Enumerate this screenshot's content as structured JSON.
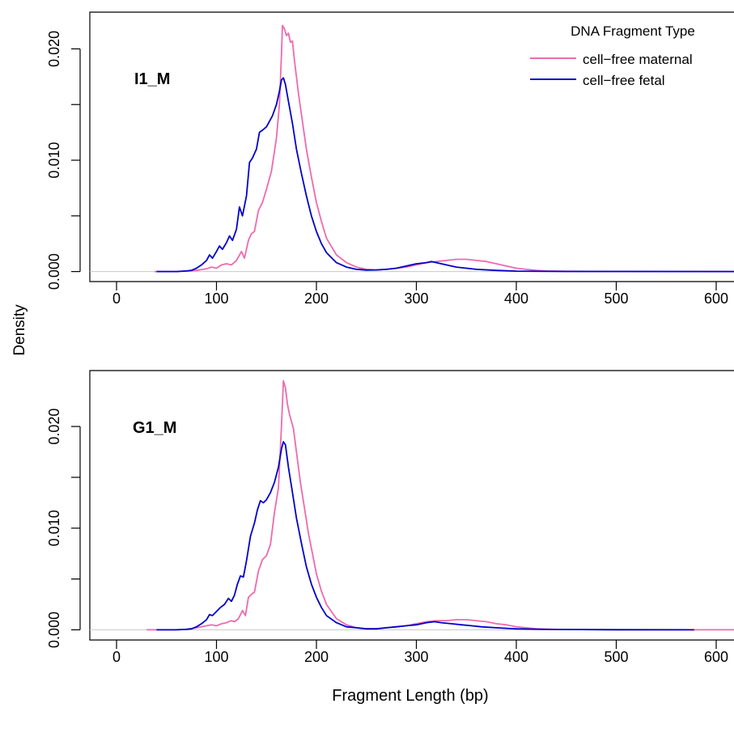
{
  "figure": {
    "ylabel": "Density",
    "xlabel": "Fragment Length (bp)"
  },
  "legend": {
    "title": "DNA Fragment Type",
    "entries": [
      {
        "label": "cell−free maternal",
        "color": "#EE6AAE"
      },
      {
        "label": "cell−free fetal",
        "color": "#0000CC"
      }
    ]
  },
  "chart_data": [
    {
      "type": "line",
      "panel_label": "I1_M",
      "xlim": [
        -27,
        620
      ],
      "ylim": [
        -0.0009,
        0.0233
      ],
      "xticks": [
        0,
        100,
        200,
        300,
        400,
        500,
        600
      ],
      "xtick_labels": [
        "0",
        "100",
        "200",
        "300",
        "400",
        "500",
        "600"
      ],
      "yticks": [
        0,
        0.005,
        0.01,
        0.015,
        0.02
      ],
      "ytick_labels": [
        "0.000",
        "",
        "0.010",
        "",
        "0.020"
      ],
      "baseline": 0,
      "series": [
        {
          "name": "cell−free maternal",
          "color": "#EE6AAE",
          "points": [
            [
              38,
              0
            ],
            [
              50,
              0
            ],
            [
              60,
              0
            ],
            [
              70,
              5e-05
            ],
            [
              80,
              0.0001
            ],
            [
              90,
              0.00025
            ],
            [
              95,
              0.0004
            ],
            [
              100,
              0.0003
            ],
            [
              105,
              0.0006
            ],
            [
              110,
              0.0007
            ],
            [
              115,
              0.0006
            ],
            [
              120,
              0.001
            ],
            [
              125,
              0.0018
            ],
            [
              128,
              0.0012
            ],
            [
              132,
              0.0028
            ],
            [
              135,
              0.0034
            ],
            [
              138,
              0.0036
            ],
            [
              142,
              0.0055
            ],
            [
              146,
              0.0062
            ],
            [
              150,
              0.0074
            ],
            [
              155,
              0.009
            ],
            [
              160,
              0.012
            ],
            [
              163,
              0.015
            ],
            [
              165,
              0.0195
            ],
            [
              166,
              0.0221
            ],
            [
              168,
              0.0218
            ],
            [
              170,
              0.0212
            ],
            [
              172,
              0.0214
            ],
            [
              174,
              0.0206
            ],
            [
              176,
              0.0207
            ],
            [
              178,
              0.019
            ],
            [
              182,
              0.016
            ],
            [
              186,
              0.0135
            ],
            [
              190,
              0.011
            ],
            [
              195,
              0.0085
            ],
            [
              200,
              0.0062
            ],
            [
              205,
              0.0045
            ],
            [
              210,
              0.003
            ],
            [
              220,
              0.0015
            ],
            [
              230,
              0.0008
            ],
            [
              240,
              0.0004
            ],
            [
              250,
              0.0002
            ],
            [
              260,
              0.00015
            ],
            [
              270,
              0.0002
            ],
            [
              280,
              0.0003
            ],
            [
              290,
              0.0004
            ],
            [
              300,
              0.0006
            ],
            [
              310,
              0.0008
            ],
            [
              320,
              0.0009
            ],
            [
              330,
              0.001
            ],
            [
              340,
              0.0011
            ],
            [
              350,
              0.0011
            ],
            [
              360,
              0.001
            ],
            [
              370,
              0.0009
            ],
            [
              380,
              0.0007
            ],
            [
              390,
              0.0005
            ],
            [
              400,
              0.0003
            ],
            [
              410,
              0.0002
            ],
            [
              420,
              0.0001
            ],
            [
              430,
              5e-05
            ],
            [
              450,
              2e-05
            ],
            [
              500,
              1e-05
            ],
            [
              620,
              0
            ]
          ]
        },
        {
          "name": "cell−free fetal",
          "color": "#0000CC",
          "points": [
            [
              40,
              0
            ],
            [
              60,
              0
            ],
            [
              70,
              5e-05
            ],
            [
              75,
              0.0001
            ],
            [
              80,
              0.0003
            ],
            [
              85,
              0.0006
            ],
            [
              90,
              0.001
            ],
            [
              93,
              0.0015
            ],
            [
              96,
              0.0012
            ],
            [
              100,
              0.0018
            ],
            [
              103,
              0.0023
            ],
            [
              106,
              0.002
            ],
            [
              110,
              0.0026
            ],
            [
              113,
              0.0032
            ],
            [
              116,
              0.0028
            ],
            [
              120,
              0.0038
            ],
            [
              123,
              0.0058
            ],
            [
              126,
              0.005
            ],
            [
              130,
              0.0068
            ],
            [
              133,
              0.0098
            ],
            [
              136,
              0.0102
            ],
            [
              140,
              0.011
            ],
            [
              143,
              0.0125
            ],
            [
              146,
              0.0127
            ],
            [
              150,
              0.013
            ],
            [
              153,
              0.0135
            ],
            [
              156,
              0.014
            ],
            [
              160,
              0.015
            ],
            [
              163,
              0.0162
            ],
            [
              165,
              0.0172
            ],
            [
              167,
              0.0174
            ],
            [
              169,
              0.0168
            ],
            [
              172,
              0.0153
            ],
            [
              176,
              0.0133
            ],
            [
              180,
              0.011
            ],
            [
              185,
              0.0088
            ],
            [
              190,
              0.0068
            ],
            [
              195,
              0.005
            ],
            [
              200,
              0.0036
            ],
            [
              205,
              0.0025
            ],
            [
              210,
              0.0017
            ],
            [
              220,
              0.0008
            ],
            [
              230,
              0.0004
            ],
            [
              240,
              0.0002
            ],
            [
              250,
              0.00013
            ],
            [
              260,
              0.00015
            ],
            [
              270,
              0.0002
            ],
            [
              280,
              0.0003
            ],
            [
              290,
              0.0005
            ],
            [
              300,
              0.0007
            ],
            [
              310,
              0.0008
            ],
            [
              315,
              0.0009
            ],
            [
              320,
              0.0008
            ],
            [
              330,
              0.0006
            ],
            [
              340,
              0.0004
            ],
            [
              350,
              0.0003
            ],
            [
              360,
              0.0002
            ],
            [
              380,
              0.0001
            ],
            [
              400,
              4e-05
            ],
            [
              450,
              1e-05
            ],
            [
              620,
              0
            ]
          ]
        }
      ]
    },
    {
      "type": "line",
      "panel_label": "G1_M",
      "xlim": [
        -27,
        620
      ],
      "ylim": [
        -0.001,
        0.0255
      ],
      "xticks": [
        0,
        100,
        200,
        300,
        400,
        500,
        600
      ],
      "xtick_labels": [
        "0",
        "100",
        "200",
        "300",
        "400",
        "500",
        "600"
      ],
      "yticks": [
        0,
        0.005,
        0.01,
        0.015,
        0.02
      ],
      "ytick_labels": [
        "0.000",
        "",
        "0.010",
        "",
        "0.020"
      ],
      "baseline": 0,
      "series": [
        {
          "name": "cell−free maternal",
          "color": "#EE6AAE",
          "points": [
            [
              30,
              0
            ],
            [
              50,
              0
            ],
            [
              60,
              0
            ],
            [
              70,
              5e-05
            ],
            [
              80,
              0.0002
            ],
            [
              90,
              0.0004
            ],
            [
              95,
              0.0005
            ],
            [
              100,
              0.0004
            ],
            [
              105,
              0.0006
            ],
            [
              110,
              0.0007
            ],
            [
              115,
              0.0009
            ],
            [
              118,
              0.0008
            ],
            [
              122,
              0.0011
            ],
            [
              126,
              0.0019
            ],
            [
              129,
              0.0014
            ],
            [
              132,
              0.0032
            ],
            [
              135,
              0.0035
            ],
            [
              138,
              0.0037
            ],
            [
              142,
              0.0058
            ],
            [
              146,
              0.0069
            ],
            [
              150,
              0.0073
            ],
            [
              154,
              0.0084
            ],
            [
              158,
              0.0115
            ],
            [
              162,
              0.014
            ],
            [
              165,
              0.02
            ],
            [
              167,
              0.0245
            ],
            [
              169,
              0.0238
            ],
            [
              171,
              0.0222
            ],
            [
              173,
              0.0212
            ],
            [
              175,
              0.0205
            ],
            [
              177,
              0.0198
            ],
            [
              180,
              0.0175
            ],
            [
              184,
              0.0145
            ],
            [
              188,
              0.012
            ],
            [
              192,
              0.0095
            ],
            [
              196,
              0.0075
            ],
            [
              200,
              0.0055
            ],
            [
              205,
              0.0038
            ],
            [
              210,
              0.0025
            ],
            [
              220,
              0.0011
            ],
            [
              230,
              0.0005
            ],
            [
              240,
              0.0002
            ],
            [
              250,
              0.0001
            ],
            [
              260,
              0.0001
            ],
            [
              270,
              0.0002
            ],
            [
              280,
              0.0003
            ],
            [
              290,
              0.0004
            ],
            [
              300,
              0.0006
            ],
            [
              310,
              0.0008
            ],
            [
              320,
              0.0009
            ],
            [
              330,
              0.0009
            ],
            [
              340,
              0.001
            ],
            [
              350,
              0.001
            ],
            [
              360,
              0.0009
            ],
            [
              370,
              0.0008
            ],
            [
              380,
              0.0006
            ],
            [
              390,
              0.0005
            ],
            [
              400,
              0.0003
            ],
            [
              410,
              0.0002
            ],
            [
              420,
              0.0001
            ],
            [
              440,
              4e-05
            ],
            [
              500,
              1e-05
            ],
            [
              620,
              0
            ]
          ]
        },
        {
          "name": "cell−free fetal",
          "color": "#0000CC",
          "points": [
            [
              40,
              0
            ],
            [
              60,
              0
            ],
            [
              70,
              5e-05
            ],
            [
              75,
              0.0001
            ],
            [
              80,
              0.0003
            ],
            [
              85,
              0.0006
            ],
            [
              90,
              0.001
            ],
            [
              93,
              0.0015
            ],
            [
              96,
              0.0014
            ],
            [
              100,
              0.0018
            ],
            [
              104,
              0.0022
            ],
            [
              108,
              0.0025
            ],
            [
              112,
              0.0031
            ],
            [
              115,
              0.0028
            ],
            [
              118,
              0.0034
            ],
            [
              121,
              0.0045
            ],
            [
              124,
              0.0053
            ],
            [
              127,
              0.0052
            ],
            [
              130,
              0.0068
            ],
            [
              134,
              0.0092
            ],
            [
              138,
              0.0105
            ],
            [
              141,
              0.0118
            ],
            [
              144,
              0.0127
            ],
            [
              147,
              0.0125
            ],
            [
              150,
              0.0128
            ],
            [
              154,
              0.0135
            ],
            [
              158,
              0.0145
            ],
            [
              162,
              0.016
            ],
            [
              165,
              0.0178
            ],
            [
              167,
              0.0185
            ],
            [
              169,
              0.0182
            ],
            [
              172,
              0.016
            ],
            [
              176,
              0.0135
            ],
            [
              180,
              0.011
            ],
            [
              185,
              0.0085
            ],
            [
              190,
              0.0062
            ],
            [
              195,
              0.0045
            ],
            [
              200,
              0.0032
            ],
            [
              205,
              0.0022
            ],
            [
              210,
              0.0014
            ],
            [
              220,
              0.0007
            ],
            [
              230,
              0.0003
            ],
            [
              240,
              0.0002
            ],
            [
              250,
              0.0001
            ],
            [
              260,
              0.0001
            ],
            [
              270,
              0.0002
            ],
            [
              280,
              0.0003
            ],
            [
              290,
              0.0004
            ],
            [
              300,
              0.0005
            ],
            [
              310,
              0.0007
            ],
            [
              318,
              0.0008
            ],
            [
              325,
              0.0007
            ],
            [
              335,
              0.0006
            ],
            [
              345,
              0.0005
            ],
            [
              355,
              0.0004
            ],
            [
              365,
              0.0003
            ],
            [
              380,
              0.0002
            ],
            [
              400,
              0.0001
            ],
            [
              430,
              4e-05
            ],
            [
              500,
              1e-05
            ],
            [
              578,
              0
            ]
          ]
        }
      ]
    }
  ]
}
